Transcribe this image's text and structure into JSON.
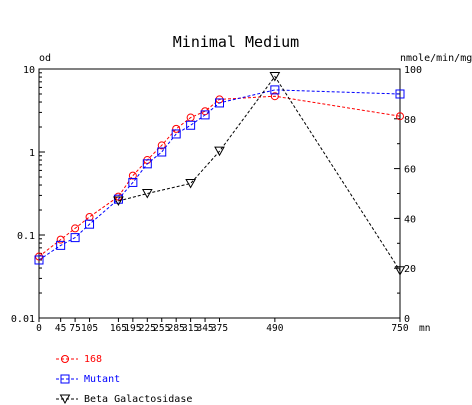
{
  "chart_data": {
    "type": "line",
    "title": "Minimal Medium",
    "y_left_label": "od",
    "y_right_label": "nmole/min/mg",
    "x_unit_label": "mn",
    "x_tick_labels": [
      "0",
      "45",
      "75",
      "105",
      "165",
      "195",
      "225",
      "255",
      "285",
      "315",
      "345",
      "375",
      "490",
      "750"
    ],
    "x_ticks": [
      0,
      45,
      75,
      105,
      165,
      195,
      225,
      255,
      285,
      315,
      345,
      375,
      490,
      750
    ],
    "xlim": [
      0,
      750
    ],
    "y_left_scale": "log",
    "y_left_ticks": [
      0.01,
      0.1,
      1,
      10
    ],
    "y_left_tick_labels": [
      "0.01",
      "0.1",
      "1",
      "10"
    ],
    "ylim_left": [
      0.01,
      10
    ],
    "y_right_ticks": [
      0,
      20,
      40,
      60,
      80,
      100
    ],
    "ylim_right": [
      0,
      100
    ],
    "grid": false,
    "legend_placement": "bottom-left",
    "series": [
      {
        "name": "168",
        "axis": "left",
        "color": "#ff0000",
        "marker": "circle",
        "x": [
          0,
          45,
          75,
          105,
          165,
          195,
          225,
          255,
          285,
          315,
          345,
          375,
          490,
          750
        ],
        "y": [
          0.055,
          0.088,
          0.12,
          0.165,
          0.29,
          0.52,
          0.8,
          1.2,
          1.9,
          2.6,
          3.1,
          4.3,
          4.7,
          2.7
        ]
      },
      {
        "name": "Mutant",
        "axis": "left",
        "color": "#0000ff",
        "marker": "square",
        "x": [
          0,
          45,
          75,
          105,
          165,
          195,
          225,
          255,
          285,
          315,
          345,
          375,
          490,
          750
        ],
        "y": [
          0.05,
          0.075,
          0.093,
          0.135,
          0.27,
          0.43,
          0.72,
          1.0,
          1.65,
          2.1,
          2.8,
          3.9,
          5.6,
          5.0
        ]
      },
      {
        "name": "Beta Galactosidase",
        "axis": "right",
        "color": "#000000",
        "marker": "triangle-down",
        "x": [
          165,
          225,
          315,
          375,
          490,
          750
        ],
        "y": [
          47,
          50,
          54,
          67,
          97,
          19
        ]
      }
    ]
  }
}
